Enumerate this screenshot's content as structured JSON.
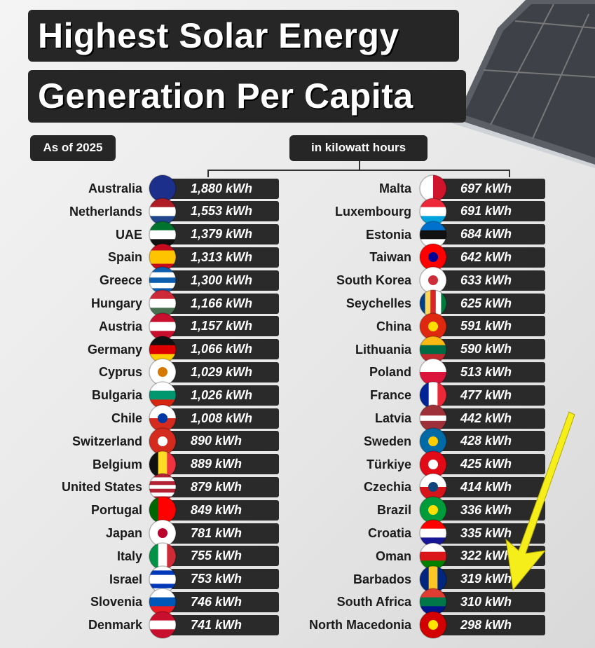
{
  "header": {
    "title_line1": "Highest Solar Energy",
    "title_line2": "Generation Per Capita",
    "as_of": "As of 2025",
    "unit_label": "in kilowatt hours"
  },
  "table": {
    "left": [
      {
        "country": "Australia",
        "value": "1,880 kWh"
      },
      {
        "country": "Netherlands",
        "value": "1,553 kWh"
      },
      {
        "country": "UAE",
        "value": "1,379 kWh"
      },
      {
        "country": "Spain",
        "value": "1,313 kWh"
      },
      {
        "country": "Greece",
        "value": "1,300 kWh"
      },
      {
        "country": "Hungary",
        "value": "1,166 kWh"
      },
      {
        "country": "Austria",
        "value": "1,157 kWh"
      },
      {
        "country": "Germany",
        "value": "1,066 kWh"
      },
      {
        "country": "Cyprus",
        "value": "1,029 kWh"
      },
      {
        "country": "Bulgaria",
        "value": "1,026 kWh"
      },
      {
        "country": "Chile",
        "value": "1,008 kWh"
      },
      {
        "country": "Switzerland",
        "value": "890 kWh"
      },
      {
        "country": "Belgium",
        "value": "889 kWh"
      },
      {
        "country": "United States",
        "value": "879 kWh"
      },
      {
        "country": "Portugal",
        "value": "849 kWh"
      },
      {
        "country": "Japan",
        "value": "781 kWh"
      },
      {
        "country": "Italy",
        "value": "755 kWh"
      },
      {
        "country": "Israel",
        "value": "753 kWh"
      },
      {
        "country": "Slovenia",
        "value": "746 kWh"
      },
      {
        "country": "Denmark",
        "value": "741 kWh"
      }
    ],
    "right": [
      {
        "country": "Malta",
        "value": "697 kWh"
      },
      {
        "country": "Luxembourg",
        "value": "691 kWh"
      },
      {
        "country": "Estonia",
        "value": "684 kWh"
      },
      {
        "country": "Taiwan",
        "value": "642 kWh"
      },
      {
        "country": "South Korea",
        "value": "633 kWh"
      },
      {
        "country": "Seychelles",
        "value": "625 kWh"
      },
      {
        "country": "China",
        "value": "591 kWh"
      },
      {
        "country": "Lithuania",
        "value": "590 kWh"
      },
      {
        "country": "Poland",
        "value": "513 kWh"
      },
      {
        "country": "France",
        "value": "477 kWh"
      },
      {
        "country": "Latvia",
        "value": "442 kWh"
      },
      {
        "country": "Sweden",
        "value": "428 kWh"
      },
      {
        "country": "Türkiye",
        "value": "425 kWh"
      },
      {
        "country": "Czechia",
        "value": "414 kWh"
      },
      {
        "country": "Brazil",
        "value": "336 kWh"
      },
      {
        "country": "Croatia",
        "value": "335 kWh"
      },
      {
        "country": "Oman",
        "value": "322 kWh"
      },
      {
        "country": "Barbados",
        "value": "319 kWh"
      },
      {
        "country": "South Africa",
        "value": "310 kWh"
      },
      {
        "country": "North Macedonia",
        "value": "298 kWh"
      }
    ]
  }
}
